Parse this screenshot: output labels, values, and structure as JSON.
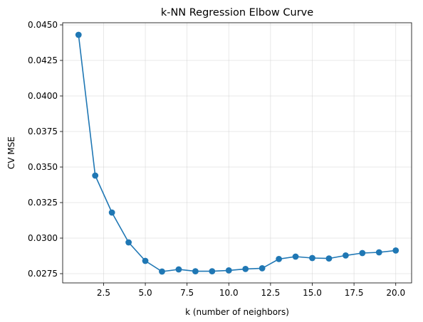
{
  "chart_data": {
    "type": "line",
    "title": "k-NN Regression Elbow Curve",
    "xlabel": "k (number of neighbors)",
    "ylabel": "CV MSE",
    "xlim": [
      0.05,
      20.95
    ],
    "ylim": [
      0.02685,
      0.04515
    ],
    "xticks": [
      2.5,
      5.0,
      7.5,
      10.0,
      12.5,
      15.0,
      17.5,
      20.0
    ],
    "xtick_labels": [
      "2.5",
      "5.0",
      "7.5",
      "10.0",
      "12.5",
      "15.0",
      "17.5",
      "20.0"
    ],
    "yticks": [
      0.0275,
      0.03,
      0.0325,
      0.035,
      0.0375,
      0.04,
      0.0425,
      0.045
    ],
    "ytick_labels": [
      "0.0275",
      "0.0300",
      "0.0325",
      "0.0350",
      "0.0375",
      "0.0400",
      "0.0425",
      "0.0450"
    ],
    "grid": true,
    "marker": "circle",
    "color": "#1f77b4",
    "series": [
      {
        "x": [
          1,
          2,
          3,
          4,
          5,
          6,
          7,
          8,
          9,
          10,
          11,
          12,
          13,
          14,
          15,
          16,
          17,
          18,
          19,
          20
        ],
        "values": [
          0.0443,
          0.0344,
          0.0318,
          0.0297,
          0.0284,
          0.02765,
          0.0278,
          0.02767,
          0.02767,
          0.02773,
          0.02783,
          0.02788,
          0.02853,
          0.0287,
          0.0286,
          0.02857,
          0.02878,
          0.02895,
          0.029,
          0.02913
        ]
      }
    ]
  }
}
